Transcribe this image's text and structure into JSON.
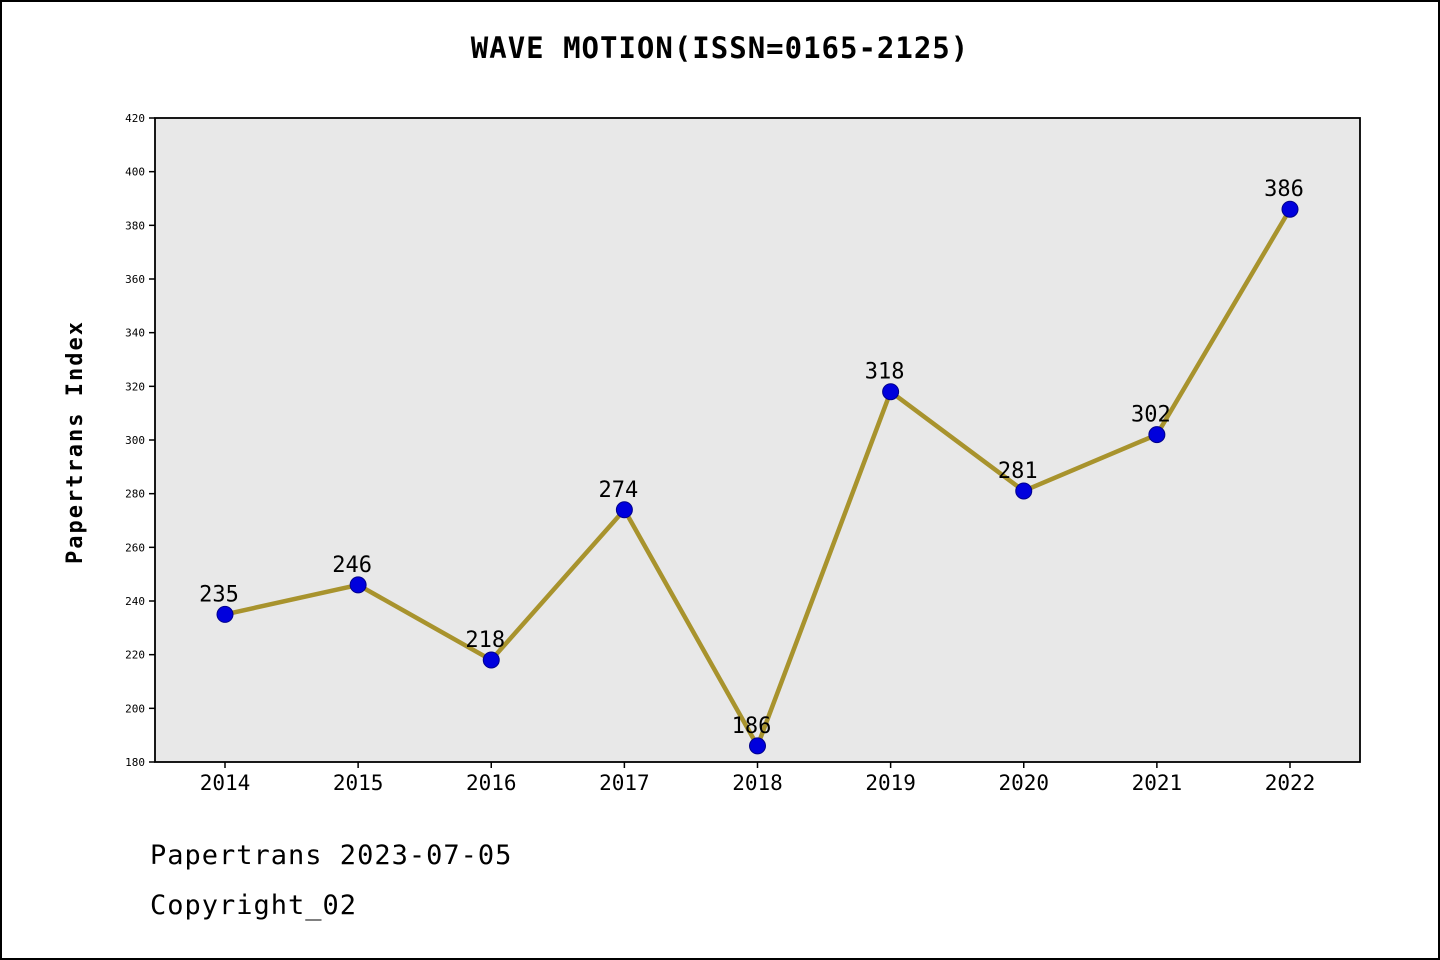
{
  "chart_data": {
    "type": "line",
    "title": "WAVE MOTION(ISSN=0165-2125)",
    "ylabel": "Papertrans Index",
    "xlabel": "",
    "categories": [
      "2014",
      "2015",
      "2016",
      "2017",
      "2018",
      "2019",
      "2020",
      "2021",
      "2022"
    ],
    "series": [
      {
        "name": "Papertrans Index",
        "values": [
          235,
          246,
          218,
          274,
          186,
          318,
          281,
          302,
          386
        ]
      }
    ],
    "ylim": [
      180,
      420
    ],
    "ytick_step": 20,
    "grid": false,
    "legend": false,
    "colors": {
      "line": "#a8932d",
      "marker_fill": "#0000dd",
      "marker_edge": "#00008b",
      "plot_background": "#e8e8e8",
      "axis": "#000000"
    }
  },
  "footer": {
    "line1": "Papertrans 2023-07-05",
    "line2": "Copyright_02"
  }
}
